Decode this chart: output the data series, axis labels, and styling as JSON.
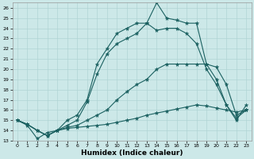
{
  "xlabel": "Humidex (Indice chaleur)",
  "bg_color": "#cce8e8",
  "line_color": "#1a6060",
  "grid_color": "#b0d4d4",
  "xlim": [
    -0.5,
    23.5
  ],
  "ylim": [
    13,
    26.5
  ],
  "yticks": [
    13,
    14,
    15,
    16,
    17,
    18,
    19,
    20,
    21,
    22,
    23,
    24,
    25,
    26
  ],
  "xticks": [
    0,
    1,
    2,
    3,
    4,
    5,
    6,
    7,
    8,
    9,
    10,
    11,
    12,
    13,
    14,
    15,
    16,
    17,
    18,
    19,
    20,
    21,
    22,
    23
  ],
  "line1_x": [
    0,
    1,
    2,
    3,
    4,
    5,
    6,
    7,
    8,
    9,
    10,
    11,
    12,
    13,
    14,
    15,
    16,
    17,
    18,
    19,
    20,
    21,
    22,
    23
  ],
  "line1_y": [
    15.0,
    14.6,
    14.0,
    13.5,
    14.0,
    14.2,
    14.3,
    14.4,
    14.5,
    14.6,
    14.8,
    15.0,
    15.2,
    15.5,
    15.7,
    15.9,
    16.1,
    16.3,
    16.5,
    16.4,
    16.2,
    16.0,
    15.8,
    16.0
  ],
  "line2_x": [
    0,
    1,
    2,
    3,
    4,
    5,
    6,
    7,
    8,
    9,
    10,
    11,
    12,
    13,
    14,
    15,
    16,
    17,
    18,
    19,
    20,
    21,
    22,
    23
  ],
  "line2_y": [
    15.0,
    14.6,
    14.0,
    13.5,
    14.0,
    14.3,
    14.5,
    15.0,
    15.5,
    16.0,
    17.0,
    17.8,
    18.5,
    19.0,
    20.0,
    20.5,
    20.5,
    20.5,
    20.5,
    20.5,
    20.2,
    18.5,
    15.5,
    16.0
  ],
  "line3_x": [
    0,
    1,
    2,
    3,
    4,
    5,
    6,
    7,
    8,
    9,
    10,
    11,
    12,
    13,
    14,
    15,
    16,
    17,
    18,
    19,
    20,
    21,
    22,
    23
  ],
  "line3_y": [
    15.0,
    14.6,
    14.0,
    13.5,
    14.0,
    14.5,
    15.0,
    16.8,
    19.5,
    21.5,
    22.5,
    23.0,
    23.5,
    24.5,
    23.8,
    24.0,
    24.0,
    23.5,
    22.5,
    20.0,
    18.5,
    16.5,
    15.2,
    16.0
  ],
  "line4_x": [
    0,
    1,
    2,
    3,
    4,
    5,
    6,
    7,
    8,
    9,
    10,
    11,
    12,
    13,
    14,
    15,
    16,
    17,
    18,
    19,
    20,
    21,
    22,
    23
  ],
  "line4_y": [
    15.0,
    14.5,
    13.2,
    13.8,
    14.0,
    15.0,
    15.5,
    17.0,
    20.5,
    22.0,
    23.5,
    24.0,
    24.5,
    24.5,
    26.5,
    25.0,
    24.8,
    24.5,
    24.5,
    20.5,
    19.0,
    16.5,
    15.0,
    16.5
  ],
  "marker": "*",
  "marker_size": 3.5,
  "lw": 0.8
}
